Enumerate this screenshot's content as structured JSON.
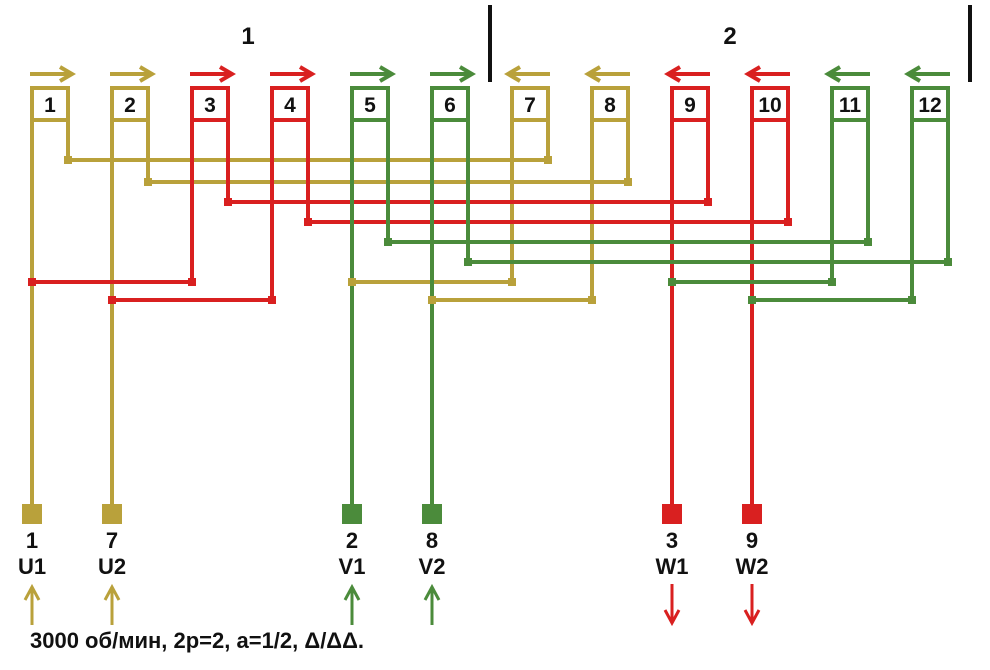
{
  "groups": [
    {
      "label": "1"
    },
    {
      "label": "2"
    }
  ],
  "coils": [
    {
      "label": "1"
    },
    {
      "label": "2"
    },
    {
      "label": "3"
    },
    {
      "label": "4"
    },
    {
      "label": "5"
    },
    {
      "label": "6"
    },
    {
      "label": "7"
    },
    {
      "label": "8"
    },
    {
      "label": "9"
    },
    {
      "label": "10"
    },
    {
      "label": "11"
    },
    {
      "label": "12"
    }
  ],
  "terminals": [
    {
      "number": "1",
      "name": "U1"
    },
    {
      "number": "7",
      "name": "U2"
    },
    {
      "number": "2",
      "name": "V1"
    },
    {
      "number": "8",
      "name": "V2"
    },
    {
      "number": "3",
      "name": "W1"
    },
    {
      "number": "9",
      "name": "W2"
    }
  ],
  "caption": "3000 об/мин, 2p=2, a=1/2, Δ/ΔΔ."
}
